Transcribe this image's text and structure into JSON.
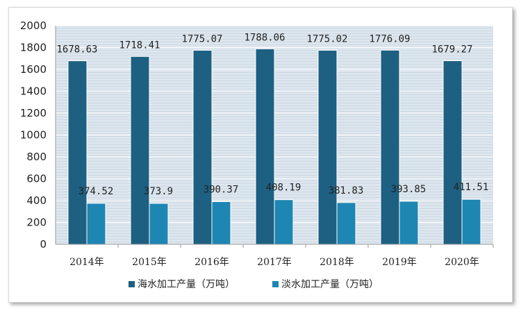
{
  "chart_data": {
    "type": "bar",
    "categories": [
      "2014年",
      "2015年",
      "2016年",
      "2017年",
      "2018年",
      "2019年",
      "2020年"
    ],
    "series": [
      {
        "name": "海水加工产量（万吨）",
        "color": "#1d6082",
        "values": [
          1678.63,
          1718.41,
          1775.07,
          1788.06,
          1775.02,
          1776.09,
          1679.27
        ],
        "labels": [
          "1678.63",
          "1718.41",
          "1775.07",
          "1788.06",
          "1775.02",
          "1776.09",
          "1679.27"
        ]
      },
      {
        "name": "淡水加工产量（万吨）",
        "color": "#1e86b3",
        "values": [
          374.52,
          373.9,
          390.37,
          408.19,
          381.83,
          393.85,
          411.51
        ],
        "labels": [
          "374.52",
          "373.9",
          "390.37",
          "408.19",
          "381.83",
          "393.85",
          "411.51"
        ]
      }
    ],
    "yticks": [
      "0",
      "200",
      "400",
      "600",
      "800",
      "1000",
      "1200",
      "1400",
      "1600",
      "1800",
      "2000"
    ],
    "ylim": [
      0,
      2000
    ],
    "grid": true,
    "legend": "bottom"
  }
}
